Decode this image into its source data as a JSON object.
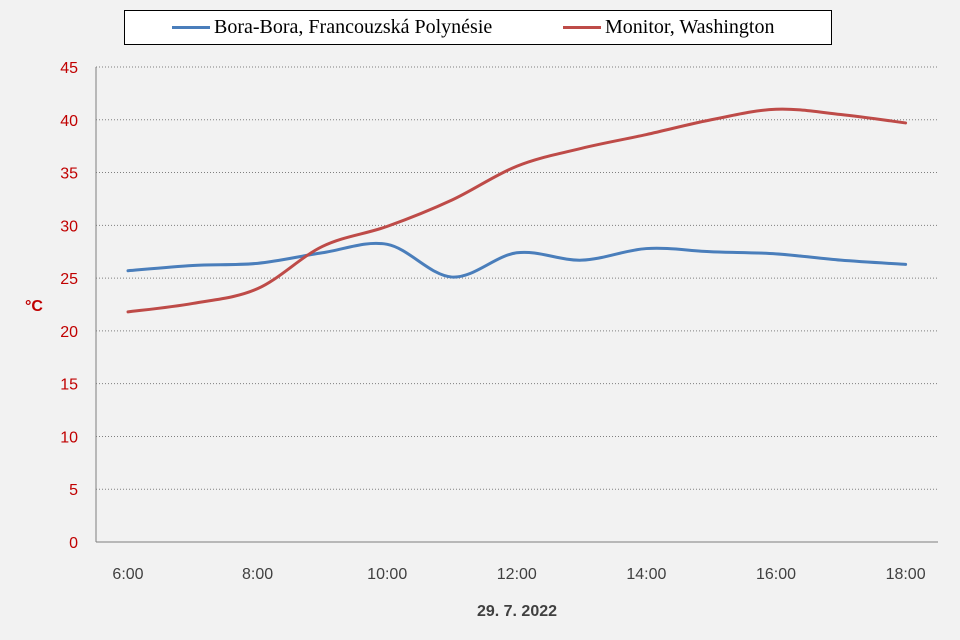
{
  "chart_data": {
    "type": "line",
    "x": [
      "6:00",
      "7:00",
      "8:00",
      "9:00",
      "10:00",
      "11:00",
      "12:00",
      "13:00",
      "14:00",
      "15:00",
      "16:00",
      "17:00",
      "18:00"
    ],
    "x_tick_labels": [
      "6:00",
      "8:00",
      "10:00",
      "12:00",
      "14:00",
      "16:00",
      "18:00"
    ],
    "y_tick_labels": [
      "0",
      "5",
      "10",
      "15",
      "20",
      "25",
      "30",
      "35",
      "40",
      "45"
    ],
    "series": [
      {
        "name": "Bora-Bora, Francouzská Polynésie",
        "color": "#4a7ebb",
        "values": [
          25.7,
          26.2,
          26.4,
          27.4,
          28.2,
          25.1,
          27.4,
          26.7,
          27.8,
          27.5,
          27.3,
          26.7,
          26.3
        ]
      },
      {
        "name": "Monitor, Washington",
        "color": "#be4b48",
        "values": [
          21.8,
          22.6,
          24.0,
          28.0,
          29.9,
          32.4,
          35.6,
          37.3,
          38.6,
          40.0,
          41.0,
          40.5,
          39.7
        ]
      }
    ],
    "xlabel": "29. 7. 2022",
    "ylabel": "°C",
    "ylim": [
      0,
      45
    ],
    "grid": "horizontal dotted",
    "legend": "top"
  }
}
